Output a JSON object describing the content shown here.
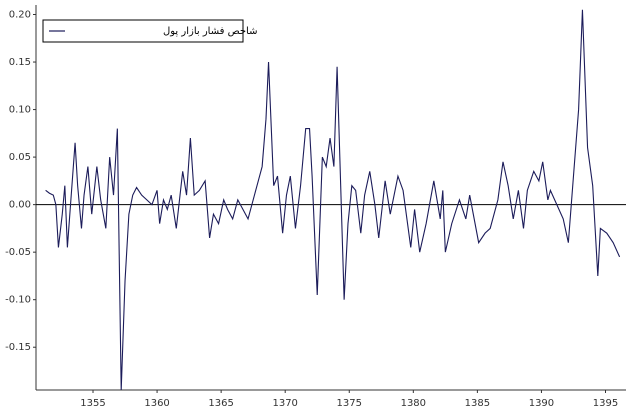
{
  "chart_data": {
    "type": "line",
    "x": [
      1351.3,
      1351.6,
      1351.9,
      1352.1,
      1352.3,
      1352.6,
      1352.8,
      1353.0,
      1353.3,
      1353.6,
      1353.8,
      1354.1,
      1354.3,
      1354.6,
      1354.9,
      1355.3,
      1355.6,
      1356.0,
      1356.3,
      1356.6,
      1356.9,
      1357.2,
      1357.5,
      1357.8,
      1358.1,
      1358.4,
      1358.8,
      1359.2,
      1359.6,
      1360.0,
      1360.2,
      1360.5,
      1360.8,
      1361.1,
      1361.5,
      1362.0,
      1362.3,
      1362.6,
      1362.9,
      1363.3,
      1363.75,
      1364.1,
      1364.4,
      1364.8,
      1365.2,
      1365.5,
      1365.9,
      1366.3,
      1366.7,
      1367.1,
      1367.5,
      1367.9,
      1368.2,
      1368.5,
      1368.7,
      1369.1,
      1369.4,
      1369.8,
      1370.1,
      1370.4,
      1370.8,
      1371.2,
      1371.6,
      1371.9,
      1372.1,
      1372.5,
      1372.9,
      1373.2,
      1373.5,
      1373.8,
      1374.05,
      1374.6,
      1374.9,
      1375.2,
      1375.5,
      1375.9,
      1376.2,
      1376.6,
      1377.0,
      1377.3,
      1377.8,
      1378.2,
      1378.8,
      1379.2,
      1379.8,
      1380.1,
      1380.5,
      1381.0,
      1381.6,
      1382.1,
      1382.3,
      1382.5,
      1383.0,
      1383.6,
      1384.1,
      1384.4,
      1385.1,
      1385.6,
      1386.0,
      1386.6,
      1387.0,
      1387.4,
      1387.8,
      1388.2,
      1388.6,
      1388.9,
      1389.4,
      1389.8,
      1390.1,
      1390.5,
      1390.7,
      1391.2,
      1391.7,
      1392.1,
      1392.5,
      1392.9,
      1393.2,
      1393.6,
      1394.0,
      1394.4,
      1394.6,
      1395.1,
      1395.6,
      1396.1
    ],
    "series": [
      {
        "name": "شاخص فشار بازار پول",
        "color": "#1c1c5a",
        "values": [
          0.015,
          0.012,
          0.01,
          0.0,
          -0.045,
          -0.01,
          0.02,
          -0.045,
          0.01,
          0.065,
          0.02,
          -0.025,
          0.01,
          0.04,
          -0.01,
          0.04,
          0.005,
          -0.025,
          0.05,
          0.01,
          0.08,
          -0.195,
          -0.08,
          -0.01,
          0.01,
          0.018,
          0.01,
          0.005,
          0.0,
          0.015,
          -0.02,
          0.005,
          -0.005,
          0.01,
          -0.025,
          0.035,
          0.01,
          0.07,
          0.01,
          0.015,
          0.025,
          -0.035,
          -0.01,
          -0.02,
          0.005,
          -0.005,
          -0.015,
          0.005,
          -0.005,
          -0.015,
          0.005,
          0.025,
          0.04,
          0.09,
          0.15,
          0.02,
          0.03,
          -0.03,
          0.01,
          0.03,
          -0.025,
          0.02,
          0.08,
          0.08,
          0.03,
          -0.095,
          0.05,
          0.04,
          0.07,
          0.04,
          0.145,
          -0.1,
          -0.02,
          0.02,
          0.015,
          -0.03,
          0.01,
          0.035,
          0.0,
          -0.035,
          0.025,
          -0.01,
          0.03,
          0.015,
          -0.045,
          -0.005,
          -0.05,
          -0.02,
          0.025,
          -0.015,
          0.015,
          -0.05,
          -0.02,
          0.005,
          -0.015,
          0.01,
          -0.04,
          -0.03,
          -0.025,
          0.005,
          0.045,
          0.02,
          -0.015,
          0.015,
          -0.025,
          0.015,
          0.035,
          0.025,
          0.045,
          0.005,
          0.015,
          0.0,
          -0.015,
          -0.04,
          0.03,
          0.1,
          0.205,
          0.06,
          0.02,
          -0.075,
          -0.025,
          -0.03,
          -0.04,
          -0.055
        ]
      }
    ],
    "xlim": [
      1350.55,
      1396.6
    ],
    "xticks": [
      1355,
      1360,
      1365,
      1370,
      1375,
      1380,
      1385,
      1390,
      1395
    ],
    "ylim": [
      -0.195,
      0.21
    ],
    "yticks": [
      -0.15,
      {
        "value": -0.1,
        "label": "-0.10"
      },
      -0.05,
      {
        "value": 0,
        "label": "0.00"
      },
      0.05,
      {
        "value": 0.1,
        "label": "0.10"
      },
      0.15,
      {
        "value": 0.2,
        "label": "0.20"
      }
    ],
    "grid": false,
    "zero_line": true,
    "legend": "upper left"
  }
}
